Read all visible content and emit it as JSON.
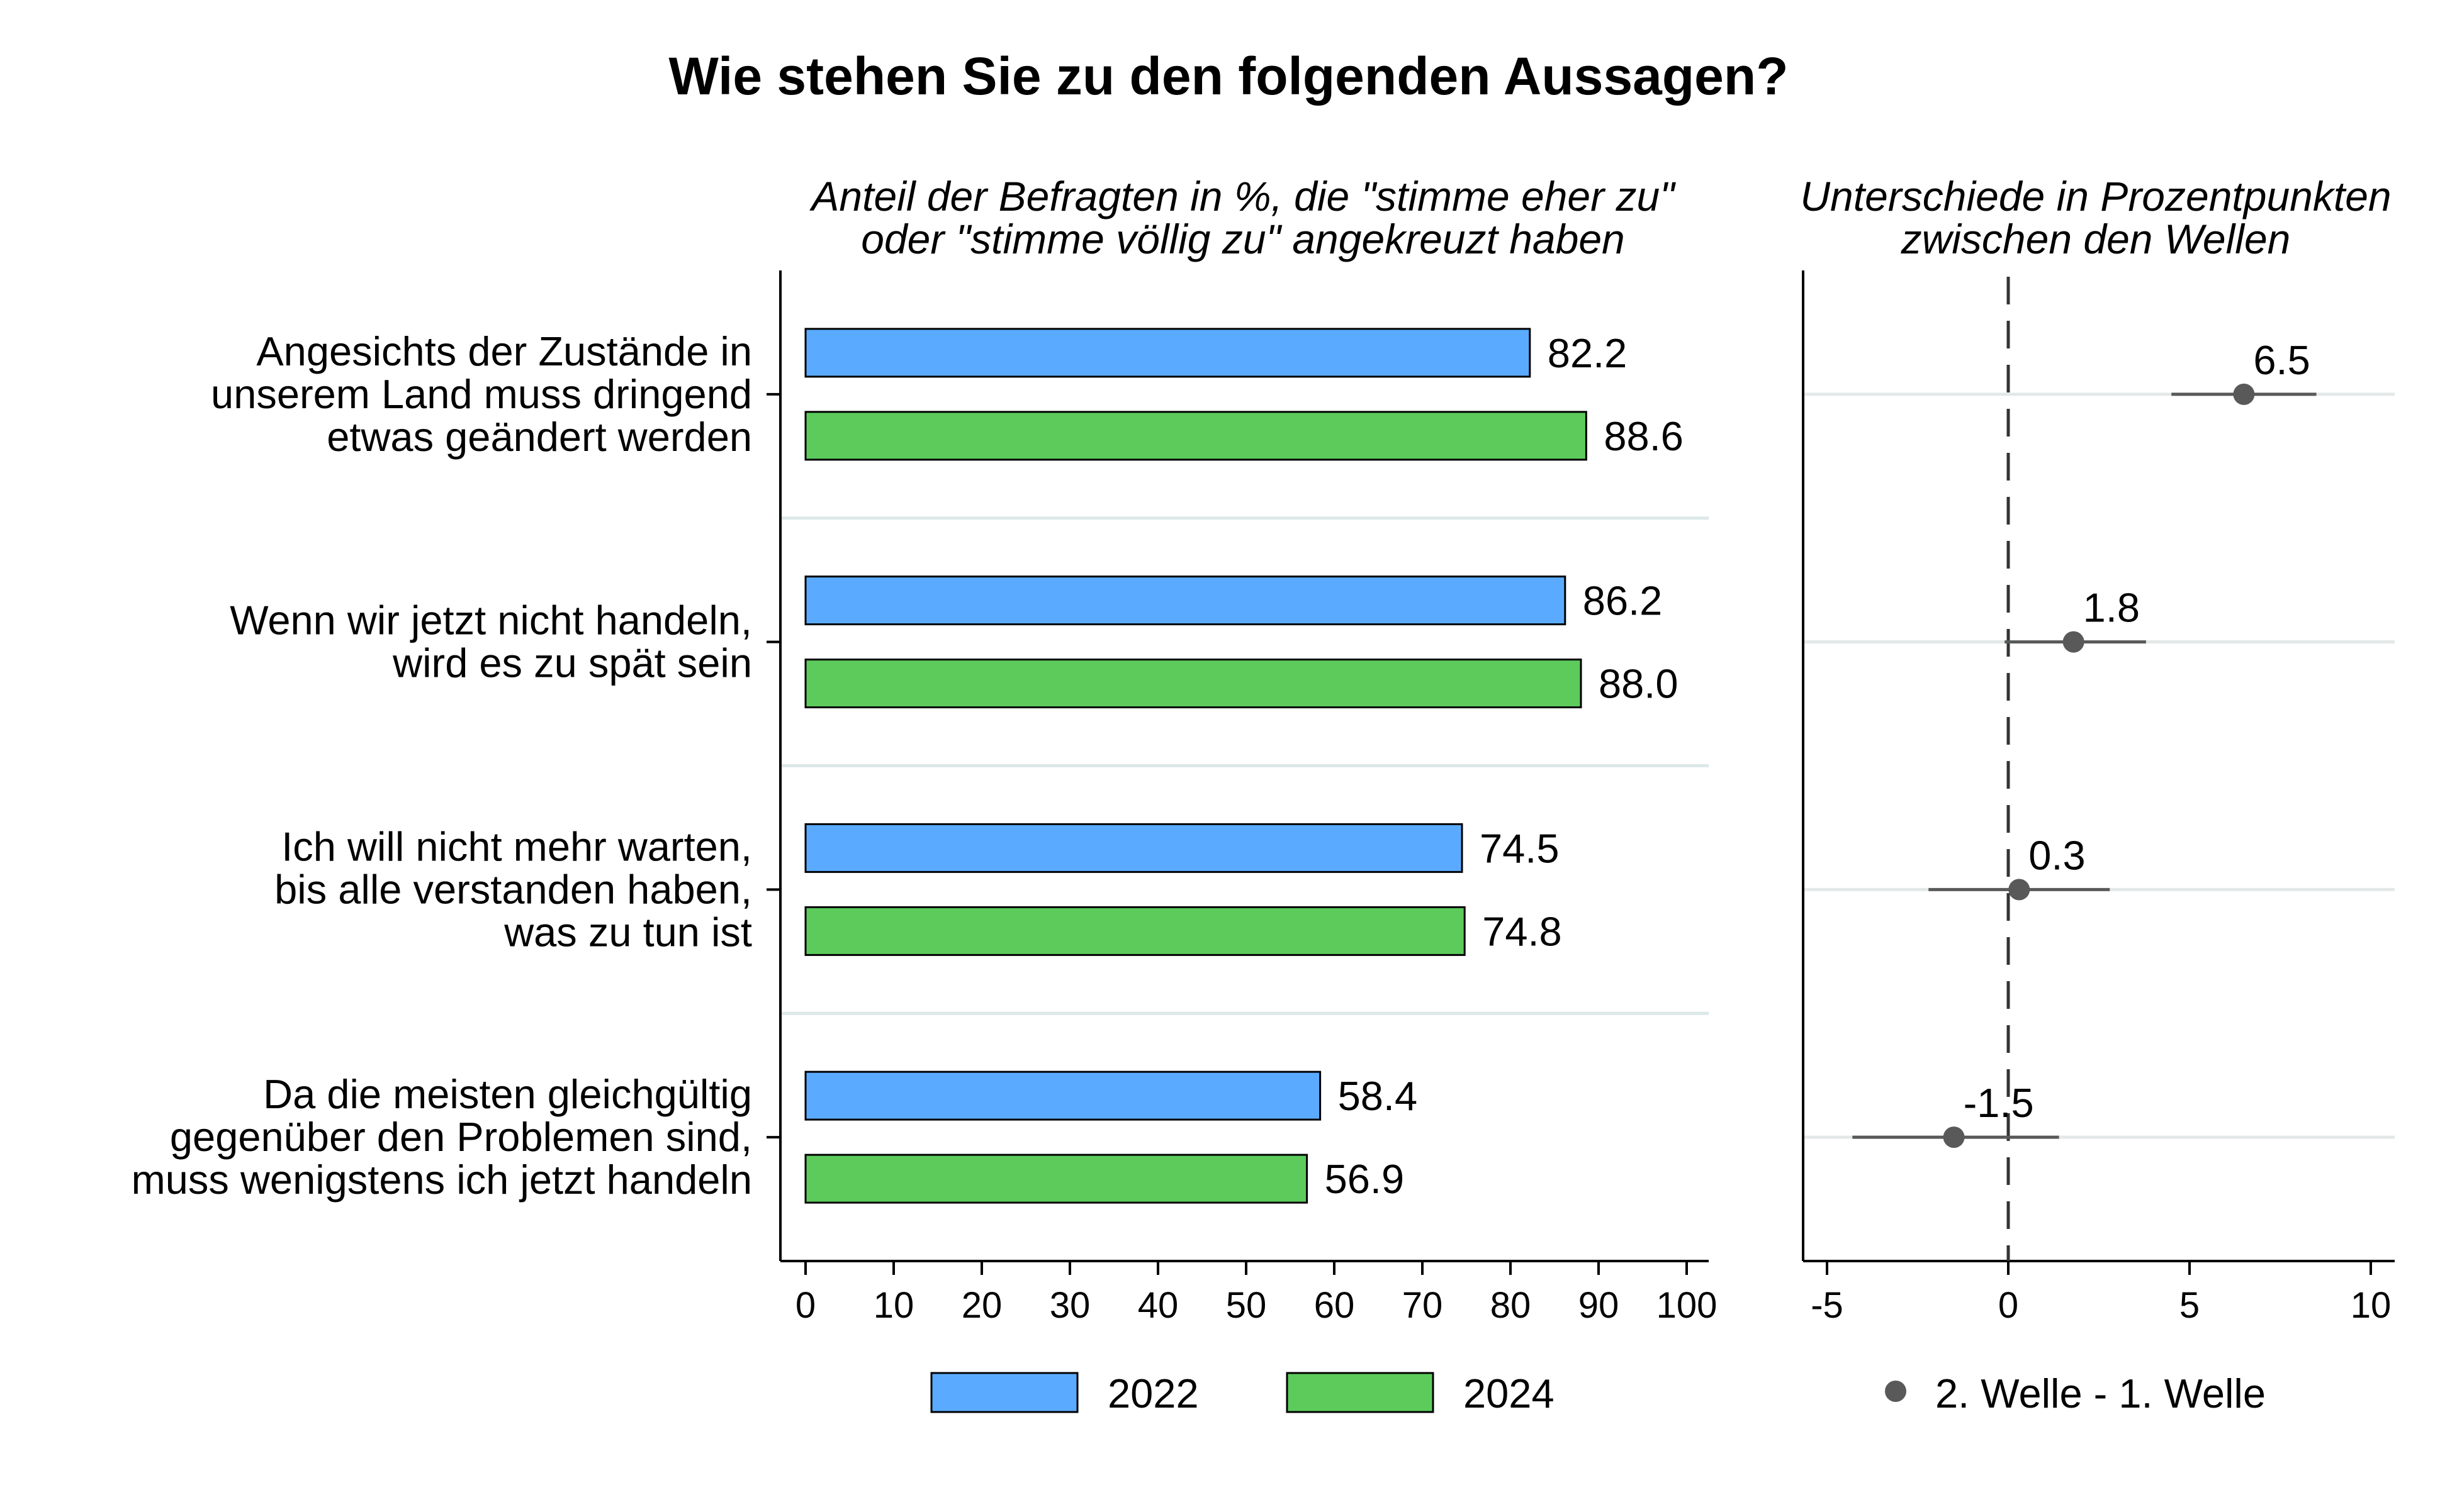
{
  "title": "Wie stehen Sie zu den folgenden Aussagen?",
  "chart_data": [
    {
      "type": "bar",
      "orientation": "horizontal",
      "subtitle": [
        "Anteil der Befragten in %, die \"stimme eher zu\"",
        "oder \"stimme völlig zu\" angekreuzt haben"
      ],
      "categories": [
        [
          "Angesichts der Zustände in",
          "unserem Land muss dringend",
          "etwas geändert werden"
        ],
        [
          "Wenn wir jetzt nicht handeln,",
          "wird es zu spät sein"
        ],
        [
          "Ich will nicht mehr warten,",
          "bis alle verstanden haben,",
          "was zu tun ist"
        ],
        [
          "Da die meisten gleichgültig",
          "gegenüber den Problemen sind,",
          "muss wenigstens ich jetzt handeln"
        ]
      ],
      "series": [
        {
          "name": "2022",
          "color": "#5aabff",
          "values": [
            82.2,
            86.2,
            74.5,
            58.4
          ],
          "labels": [
            "82.2",
            "86.2",
            "74.5",
            "58.4"
          ]
        },
        {
          "name": "2024",
          "color": "#5ccb5c",
          "values": [
            88.6,
            88.0,
            74.8,
            56.9
          ],
          "labels": [
            "88.6",
            "88.0",
            "74.8",
            "56.9"
          ]
        }
      ],
      "xlim": [
        0,
        100
      ],
      "xticks": [
        "0",
        "10",
        "20",
        "30",
        "40",
        "50",
        "60",
        "70",
        "80",
        "90",
        "100"
      ],
      "legend_position": "bottom"
    },
    {
      "type": "dot_errorbar",
      "subtitle": [
        "Unterschiede in Prozentpunkten",
        "zwischen den Wellen"
      ],
      "series": [
        {
          "name": "2. Welle - 1. Welle",
          "color": "#595959",
          "values": [
            6.5,
            1.8,
            0.3,
            -1.5
          ],
          "labels": [
            "6.5",
            "1.8",
            "0.3",
            "-1.5"
          ],
          "ci_low": [
            4.5,
            -0.1,
            -2.2,
            -4.3
          ],
          "ci_high": [
            8.5,
            3.8,
            2.8,
            1.4
          ]
        }
      ],
      "xlim": [
        -6,
        11
      ],
      "xticks": [
        "-5",
        "0",
        "5",
        "10"
      ],
      "reference_line": 0,
      "legend_position": "bottom"
    }
  ]
}
